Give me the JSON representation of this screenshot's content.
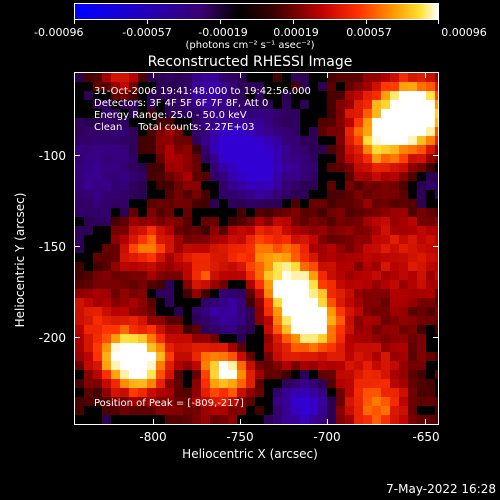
{
  "colorbar": {
    "tick_labels": [
      "-0.00096",
      "-0.00057",
      "-0.00019",
      "0.00019",
      "0.00057",
      "0.00096"
    ],
    "units": "(photons cm⁻² s⁻¹ asec⁻²)"
  },
  "title": "Reconstructed RHESSI Image",
  "info": {
    "line1": "31-Oct-2006 19:41:48.000 to 19:42:56.000",
    "line2": "Detectors: 3F 4F 5F 6F 7F 8F, Att 0",
    "line3": "Energy Range: 25.0 - 50.0 keV",
    "line4": "Clean     Total counts: 2.27E+03",
    "peak": "Position of Peak = [-809,-217]"
  },
  "axes": {
    "xlabel": "Heliocentric X (arcsec)",
    "ylabel": "Heliocentric Y (arcsec)",
    "x_ticks": [
      "-800",
      "-750",
      "-700",
      "-650"
    ],
    "y_ticks": [
      "-100",
      "-150",
      "-200"
    ],
    "x_tick_values": [
      -800,
      -750,
      -700,
      -650
    ],
    "y_tick_values": [
      -100,
      -150,
      -200
    ],
    "xlim": [
      -846,
      -648
    ],
    "ylim": [
      -247,
      -61
    ]
  },
  "footer": {
    "date": "7-May-2022 16:28"
  },
  "colors": {
    "low": "#0000ff",
    "mid": "#000000",
    "high": "#ffffff"
  }
}
